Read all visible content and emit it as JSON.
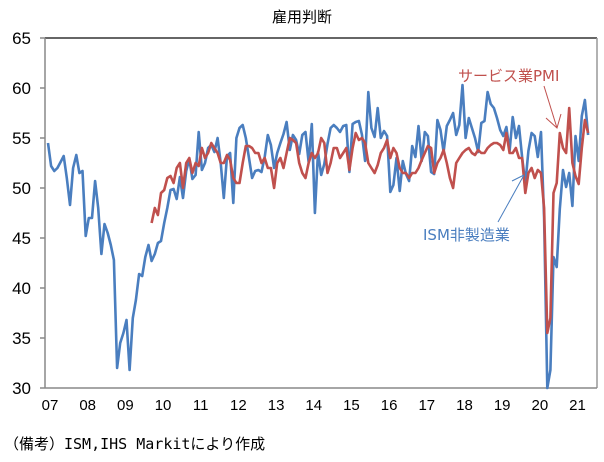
{
  "chart_data": {
    "type": "line",
    "title": "雇用判断",
    "note": "（備考）ISM,IHS Markitにより作成",
    "ylim": [
      30,
      65
    ],
    "yticks": [
      30,
      35,
      40,
      45,
      50,
      55,
      60,
      65
    ],
    "xlabels": [
      "07",
      "08",
      "09",
      "10",
      "11",
      "12",
      "13",
      "14",
      "15",
      "16",
      "17",
      "18",
      "19",
      "20",
      "21"
    ],
    "x_start": "2007-01",
    "frequency": "monthly",
    "grid": false,
    "series": [
      {
        "name": "ISM非製造業",
        "color": "#4a7ebf",
        "start": "2007-01",
        "values": [
          54.5,
          52.2,
          51.7,
          52.0,
          52.6,
          53.2,
          51.0,
          48.3,
          52.0,
          53.3,
          51.5,
          51.7,
          45.2,
          47.0,
          47.0,
          50.7,
          48.0,
          43.4,
          46.4,
          45.5,
          44.3,
          42.8,
          32.0,
          34.5,
          35.5,
          36.8,
          31.8,
          37.0,
          38.8,
          41.4,
          41.2,
          43.1,
          44.3,
          42.7,
          43.4,
          44.5,
          44.7,
          46.5,
          48.0,
          49.8,
          49.9,
          48.9,
          51.1,
          49.0,
          51.7,
          52.9,
          50.9,
          51.3,
          55.6,
          51.8,
          52.5,
          54.0,
          54.3,
          53.6,
          55.0,
          52.5,
          49.0,
          53.2,
          53.5,
          48.5,
          55.0,
          56.0,
          56.3,
          55.0,
          53.0,
          51.0,
          51.7,
          51.8,
          51.6,
          53.1,
          55.3,
          54.3,
          52.0,
          53.5,
          54.5,
          55.4,
          56.6,
          53.8,
          55.3,
          54.8,
          53.4,
          55.3,
          55.6,
          52.6,
          56.4,
          47.5,
          53.6,
          51.3,
          52.4,
          54.4,
          56.0,
          56.3,
          56.0,
          55.6,
          56.2,
          56.3,
          51.6,
          56.4,
          56.6,
          56.7,
          55.3,
          52.7,
          59.6,
          56.0,
          55.1,
          58.0,
          55.0,
          55.7,
          55.2,
          49.6,
          50.3,
          53.0,
          49.7,
          52.7,
          51.4,
          50.7,
          54.2,
          53.1,
          56.2,
          52.7,
          55.6,
          55.2,
          51.6,
          51.4,
          56.8,
          55.8,
          53.6,
          56.2,
          56.8,
          57.5,
          55.3,
          56.3,
          60.3,
          55.0,
          57.0,
          56.0,
          55.0,
          53.6,
          56.5,
          56.7,
          59.6,
          58.4,
          58.0,
          57.0,
          55.8,
          55.2,
          56.1,
          53.7,
          57.1,
          55.0,
          56.2,
          53.1,
          50.4,
          53.7,
          55.5,
          55.2,
          53.1,
          55.6,
          47.0,
          30.0,
          31.8,
          43.1,
          42.1,
          47.9,
          51.8,
          50.1,
          51.5,
          48.2,
          55.2,
          52.7,
          57.2,
          58.8,
          55.3
        ]
      },
      {
        "name": "サービス業PMI",
        "color": "#c0504d",
        "start": "2009-10",
        "values": [
          46.5,
          48.0,
          47.3,
          49.5,
          49.8,
          51.0,
          51.2,
          50.5,
          52.0,
          52.5,
          50.0,
          52.5,
          53.0,
          51.5,
          52.5,
          52.2,
          54.0,
          53.0,
          53.5,
          54.5,
          54.0,
          53.5,
          52.5,
          52.5,
          53.3,
          52.8,
          51.0,
          50.5,
          50.5,
          52.5,
          54.2,
          54.2,
          54.0,
          53.5,
          53.5,
          52.5,
          53.0,
          52.0,
          52.0,
          50.0,
          52.5,
          53.0,
          52.0,
          53.5,
          55.0,
          54.8,
          54.5,
          52.5,
          51.5,
          51.0,
          52.5,
          53.5,
          53.0,
          53.5,
          55.0,
          54.5,
          51.5,
          52.5,
          54.0,
          54.0,
          53.0,
          53.5,
          54.0,
          51.8,
          54.0,
          55.5,
          54.8,
          55.0,
          54.5,
          52.5,
          52.0,
          51.5,
          52.3,
          53.5,
          54.0,
          54.8,
          53.0,
          54.0,
          53.5,
          52.0,
          51.5,
          51.5,
          51.0,
          51.5,
          51.5,
          52.0,
          52.8,
          53.5,
          54.2,
          54.0,
          51.5,
          52.5,
          53.0,
          53.8,
          52.5,
          51.0,
          50.0,
          52.5,
          53.0,
          53.5,
          53.8,
          54.0,
          53.5,
          53.3,
          53.8,
          53.5,
          53.5,
          54.0,
          54.3,
          54.5,
          54.5,
          54.3,
          53.8,
          55.5,
          53.5,
          53.5,
          54.0,
          53.0,
          53.0,
          49.5,
          51.5,
          52.0,
          51.0,
          51.8,
          51.5,
          48.0,
          35.5,
          37.0,
          49.5,
          50.5,
          55.5,
          54.0,
          53.5,
          58.0,
          52.5,
          51.2,
          50.4,
          54.0,
          56.8,
          55.5
        ]
      }
    ]
  }
}
